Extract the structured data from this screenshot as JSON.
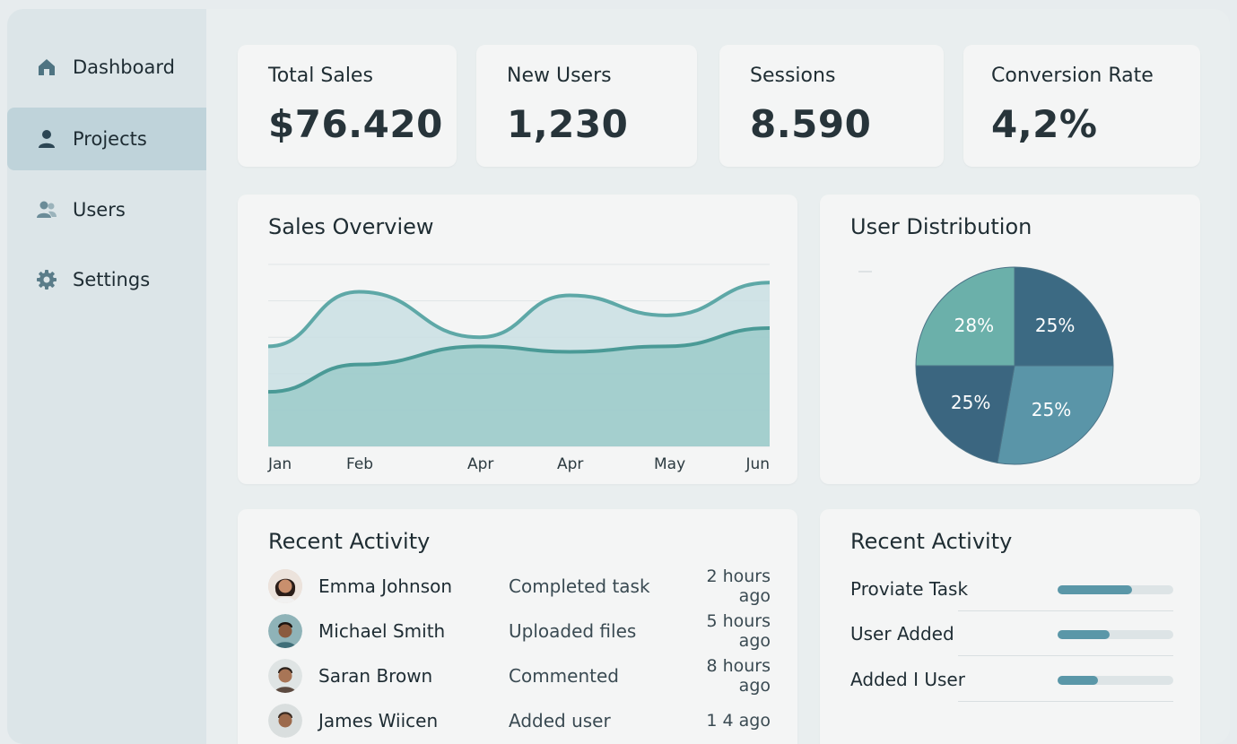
{
  "sidebar": {
    "items": [
      {
        "label": "Dashboard",
        "icon": "home-icon"
      },
      {
        "label": "Projects",
        "icon": "user-icon",
        "active": true
      },
      {
        "label": "Users",
        "icon": "users-icon"
      },
      {
        "label": "Settings",
        "icon": "gear-icon"
      }
    ]
  },
  "stats": [
    {
      "label": "Total Sales",
      "value": "$76.420"
    },
    {
      "label": "New Users",
      "value": "1,230"
    },
    {
      "label": "Sessions",
      "value": "8.590"
    },
    {
      "label": "Conversion Rate",
      "value": "4,2%"
    }
  ],
  "sales_overview": {
    "title": "Sales Overview"
  },
  "user_distribution": {
    "title": "User Distribution"
  },
  "chart_data": [
    {
      "type": "area",
      "title": "Sales Overview",
      "categories": [
        "Jan",
        "Feb",
        "Apr",
        "Apr",
        "May",
        "Jun"
      ],
      "series": [
        {
          "values": [
            55,
            85,
            60,
            83,
            72,
            90
          ]
        },
        {
          "values": [
            30,
            45,
            55,
            52,
            55,
            65
          ]
        }
      ],
      "grid": true,
      "colors": [
        "#5ea8a7",
        "#4a9a96"
      ]
    },
    {
      "type": "pie",
      "title": "User Distribution",
      "labels": [
        "25%",
        "25%",
        "25%",
        "28%"
      ],
      "values": [
        25,
        25,
        25,
        28
      ],
      "colors": [
        "#3c6a83",
        "#5a95a8",
        "#3b6680",
        "#6bb0aa"
      ]
    }
  ],
  "recent_activity": {
    "title": "Recent Activity",
    "rows": [
      {
        "name": "Emma Johnson",
        "action": "Completed task",
        "time": "2 hours ago"
      },
      {
        "name": "Michael Smith",
        "action": "Uploaded files",
        "time": "5 hours ago"
      },
      {
        "name": "Saran Brown",
        "action": "Commented",
        "time": "8 hours ago"
      },
      {
        "name": "James Wiicen",
        "action": "Added user",
        "time": "1 4 ago"
      }
    ]
  },
  "recent_activity_2": {
    "title": "Recent Activity",
    "items": [
      {
        "label": "Proviate Task",
        "progress": 0.64
      },
      {
        "label": "User Added",
        "progress": 0.45
      },
      {
        "label": "Added I User",
        "progress": 0.35
      }
    ]
  },
  "colors": {
    "accent": "#4a9a96",
    "progress": "#5a97a8",
    "sidebar_active": "#bfd3da"
  }
}
